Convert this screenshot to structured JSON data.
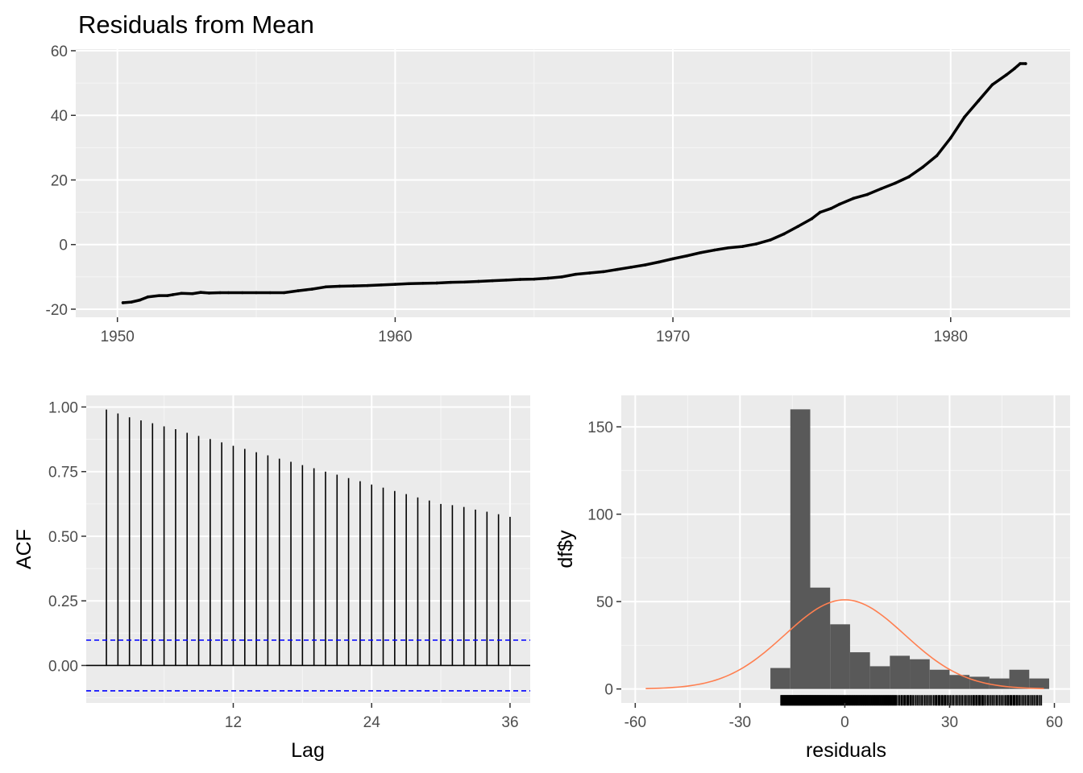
{
  "colors": {
    "panel_bg": "#ebebeb",
    "grid_major": "#ffffff",
    "grid_minor": "#f5f5f5",
    "line": "#000000",
    "bar": "#595959",
    "ci": "#0000ff",
    "density": "#ff7f50",
    "tick_text": "#4d4d4d"
  },
  "chart_data": [
    {
      "id": "residuals",
      "type": "line",
      "title": "Residuals from Mean",
      "xlabel": "",
      "ylabel": "",
      "xlim": [
        1948.5,
        1984.3
      ],
      "ylim": [
        -22.5,
        60.5
      ],
      "x_ticks": [
        1950,
        1960,
        1970,
        1980
      ],
      "x_tick_labels": [
        "1950",
        "1960",
        "1970",
        "1980"
      ],
      "y_ticks": [
        -20,
        0,
        20,
        40,
        60
      ],
      "y_tick_labels": [
        "-20",
        "0",
        "20",
        "40",
        "60"
      ],
      "x": [
        1950.2,
        1950.5,
        1950.8,
        1951.1,
        1951.5,
        1951.8,
        1952.0,
        1952.3,
        1952.7,
        1953.0,
        1953.3,
        1953.7,
        1954.0,
        1954.5,
        1955.0,
        1955.5,
        1956.0,
        1956.5,
        1957.0,
        1957.5,
        1958.0,
        1958.5,
        1959.0,
        1959.5,
        1960.0,
        1960.5,
        1961.0,
        1961.5,
        1962.0,
        1962.5,
        1963.0,
        1963.5,
        1964.0,
        1964.5,
        1965.0,
        1965.5,
        1966.0,
        1966.5,
        1967.0,
        1967.5,
        1968.0,
        1968.5,
        1969.0,
        1969.5,
        1970.0,
        1970.5,
        1971.0,
        1971.5,
        1972.0,
        1972.5,
        1973.0,
        1973.5,
        1974.0,
        1974.5,
        1975.0,
        1975.3,
        1975.7,
        1976.0,
        1976.5,
        1977.0,
        1977.5,
        1978.0,
        1978.5,
        1979.0,
        1979.5,
        1980.0,
        1980.5,
        1981.0,
        1981.5,
        1982.0,
        1982.3,
        1982.5,
        1982.7
      ],
      "y": [
        -18,
        -17.8,
        -17.2,
        -16.2,
        -15.8,
        -15.8,
        -15.5,
        -15.1,
        -15.2,
        -14.8,
        -15.0,
        -14.9,
        -14.9,
        -14.9,
        -14.9,
        -14.9,
        -14.9,
        -14.3,
        -13.8,
        -13.1,
        -12.9,
        -12.8,
        -12.7,
        -12.5,
        -12.3,
        -12.1,
        -12.0,
        -11.9,
        -11.7,
        -11.6,
        -11.4,
        -11.2,
        -11.0,
        -10.8,
        -10.7,
        -10.4,
        -10.0,
        -9.2,
        -8.8,
        -8.4,
        -7.7,
        -7.0,
        -6.3,
        -5.4,
        -4.4,
        -3.5,
        -2.5,
        -1.7,
        -1.0,
        -0.6,
        0.2,
        1.4,
        3.3,
        5.6,
        8.0,
        10.0,
        11.2,
        12.5,
        14.3,
        15.5,
        17.3,
        19.0,
        21.0,
        24.0,
        27.5,
        33.0,
        39.5,
        44.5,
        49.5,
        52.5,
        54.5,
        56.0,
        56.0
      ]
    },
    {
      "id": "acf",
      "type": "bar",
      "title": "",
      "xlabel": "Lag",
      "ylabel": "ACF",
      "xlim": [
        -0.75,
        37.75
      ],
      "ylim": [
        -0.145,
        1.045
      ],
      "x_ticks": [
        12,
        24,
        36
      ],
      "x_tick_labels": [
        "12",
        "24",
        "36"
      ],
      "y_ticks": [
        0,
        0.25,
        0.5,
        0.75,
        1.0
      ],
      "y_tick_labels": [
        "0.00",
        "0.25",
        "0.50",
        "0.75",
        "1.00"
      ],
      "lags": [
        1,
        2,
        3,
        4,
        5,
        6,
        7,
        8,
        9,
        10,
        11,
        12,
        13,
        14,
        15,
        16,
        17,
        18,
        19,
        20,
        21,
        22,
        23,
        24,
        25,
        26,
        27,
        28,
        29,
        30,
        31,
        32,
        33,
        34,
        35,
        36
      ],
      "values": [
        0.99,
        0.975,
        0.96,
        0.948,
        0.937,
        0.925,
        0.914,
        0.9,
        0.888,
        0.876,
        0.863,
        0.85,
        0.838,
        0.825,
        0.813,
        0.8,
        0.788,
        0.775,
        0.763,
        0.75,
        0.738,
        0.725,
        0.713,
        0.7,
        0.688,
        0.675,
        0.663,
        0.65,
        0.638,
        0.625,
        0.62,
        0.613,
        0.603,
        0.595,
        0.585,
        0.575
      ],
      "ci": 0.098
    },
    {
      "id": "histogram",
      "type": "bar",
      "title": "",
      "xlabel": "residuals",
      "ylabel": "df$y",
      "xlim": [
        -64,
        64.5
      ],
      "ylim": [
        -8,
        168
      ],
      "x_ticks": [
        -60,
        -30,
        0,
        30,
        60
      ],
      "x_tick_labels": [
        "-60",
        "-30",
        "0",
        "30",
        "60"
      ],
      "y_ticks": [
        0,
        50,
        100,
        150
      ],
      "y_tick_labels": [
        "0",
        "50",
        "100",
        "150"
      ],
      "bin_width": 5.7,
      "bin_starts": [
        -21.3,
        -15.6,
        -9.9,
        -4.2,
        1.5,
        7.2,
        12.9,
        18.6,
        24.3,
        30.0,
        35.7,
        41.4,
        47.1,
        52.8
      ],
      "counts": [
        12,
        160,
        58,
        37,
        21,
        13,
        19,
        17,
        11,
        8,
        7,
        6,
        11,
        6
      ],
      "density_curve": {
        "mean": 0,
        "sd": 17.2,
        "n": 386
      },
      "rug_range": [
        -18.3,
        56.5
      ]
    }
  ]
}
